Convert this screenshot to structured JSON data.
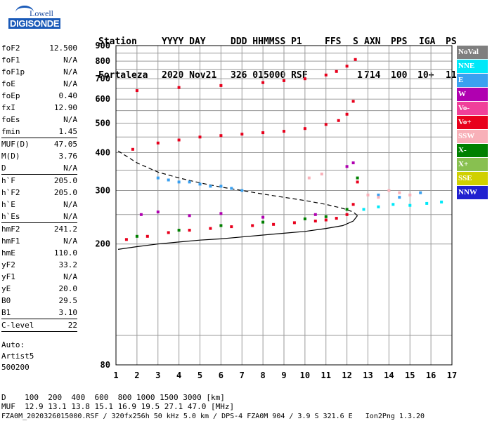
{
  "logo": {
    "line1": "Lowell",
    "line2": "DIGISONDE"
  },
  "header": {
    "labels": [
      "Station",
      "YYYY DAY",
      "DDD HHMMSS P1",
      "FFS",
      "S",
      "AXN",
      "PPS",
      "IGA",
      "PS"
    ],
    "values": [
      "Fortaleza",
      "2020 Nov21",
      "326 015000 RSF",
      "1",
      "714",
      "100",
      "10+",
      "11"
    ]
  },
  "params": {
    "groups": [
      [
        {
          "k": "foF2",
          "v": "12.500"
        },
        {
          "k": "foF1",
          "v": "N/A"
        },
        {
          "k": "foF1p",
          "v": "N/A"
        },
        {
          "k": "foE",
          "v": "N/A"
        },
        {
          "k": "foEp",
          "v": "0.40"
        },
        {
          "k": "fxI",
          "v": "12.90"
        },
        {
          "k": "foEs",
          "v": "N/A"
        },
        {
          "k": "fmin",
          "v": "1.45"
        }
      ],
      [
        {
          "k": "MUF(D)",
          "v": "47.05"
        },
        {
          "k": "M(D)",
          "v": "3.76"
        },
        {
          "k": "D",
          "v": "N/A"
        }
      ],
      [
        {
          "k": "h`F",
          "v": "205.0"
        },
        {
          "k": "h`F2",
          "v": "205.0"
        },
        {
          "k": "h`E",
          "v": "N/A"
        },
        {
          "k": "h`Es",
          "v": "N/A"
        }
      ],
      [
        {
          "k": "hmF2",
          "v": "241.2"
        },
        {
          "k": "hmF1",
          "v": "N/A"
        },
        {
          "k": "hmE",
          "v": "110.0"
        },
        {
          "k": "yF2",
          "v": "33.2"
        },
        {
          "k": "yF1",
          "v": "N/A"
        },
        {
          "k": "yE",
          "v": "20.0"
        },
        {
          "k": "B0",
          "v": "29.5"
        },
        {
          "k": "B1",
          "v": "3.10"
        }
      ],
      [
        {
          "k": "C-level",
          "v": "22"
        }
      ]
    ],
    "auto_label": "Auto:",
    "auto_name": "Artist5",
    "auto_code": "500200"
  },
  "legend": [
    {
      "label": "NoVal",
      "color": "#7f7f7f"
    },
    {
      "label": "NNE",
      "color": "#00e8f8"
    },
    {
      "label": "E",
      "color": "#3aa0f0"
    },
    {
      "label": "W",
      "color": "#b000b0"
    },
    {
      "label": "Vo-",
      "color": "#f0409a"
    },
    {
      "label": "Vo+",
      "color": "#e8001c"
    },
    {
      "label": "SSW",
      "color": "#f8b0b8"
    },
    {
      "label": "X-",
      "color": "#008000"
    },
    {
      "label": "X+",
      "color": "#88c050"
    },
    {
      "label": "SSE",
      "color": "#d0d000"
    },
    {
      "label": "NNW",
      "color": "#2020d0"
    }
  ],
  "footer": {
    "line1": "D    100  200  400  600  800 1000 1500 3000 [km]",
    "line2": "MUF  12.9 13.1 13.8 15.1 16.9 19.5 27.1 47.0 [MHz]",
    "line3": "FZA0M_2020326015000.RSF / 320fx256h 50 kHz 5.0 km / DPS-4 FZA0M 904 / 3.9 S 321.6 E   Ion2Png 1.3.20"
  },
  "chart_data": {
    "type": "scatter",
    "title": "",
    "xlabel": "",
    "ylabel": "",
    "xlim": [
      1,
      17
    ],
    "ylim": [
      80,
      900
    ],
    "y_scale": "log",
    "grid": true,
    "x_ticks": [
      1,
      2,
      3,
      4,
      5,
      6,
      7,
      8,
      9,
      10,
      11,
      12,
      13,
      14,
      15,
      16,
      17
    ],
    "y_ticks": [
      80,
      200,
      300,
      400,
      500,
      600,
      700,
      800,
      900
    ],
    "series": [
      {
        "name": "O-trace 1st hop",
        "color": "#e8001c",
        "x": [
          1.5,
          2.5,
          3.5,
          4.5,
          5.5,
          6.5,
          7.5,
          8.5,
          9.5,
          10.5,
          11.0,
          11.5,
          12.0,
          12.3,
          12.5
        ],
        "y": [
          207,
          212,
          218,
          222,
          225,
          228,
          230,
          232,
          235,
          238,
          240,
          243,
          250,
          270,
          320
        ]
      },
      {
        "name": "O-trace 2nd hop",
        "color": "#e8001c",
        "x": [
          1.8,
          3.0,
          4.0,
          5.0,
          6.0,
          7.0,
          8.0,
          9.0,
          10.0,
          11.0,
          11.6,
          12.0,
          12.3
        ],
        "y": [
          410,
          430,
          440,
          450,
          455,
          460,
          465,
          470,
          480,
          495,
          510,
          535,
          590
        ]
      },
      {
        "name": "O-trace 3rd hop",
        "color": "#e8001c",
        "x": [
          2.0,
          4.0,
          6.0,
          8.0,
          9.0,
          10.0,
          11.0,
          11.5,
          12.0,
          12.4
        ],
        "y": [
          640,
          655,
          665,
          680,
          690,
          700,
          720,
          740,
          770,
          810
        ]
      },
      {
        "name": "X-trace",
        "color": "#008000",
        "x": [
          2.0,
          4.0,
          6.0,
          8.0,
          10.0,
          11.0,
          12.0,
          12.5
        ],
        "y": [
          212,
          222,
          230,
          236,
          242,
          246,
          260,
          330
        ]
      },
      {
        "name": "NNE echoes",
        "color": "#00e8f8",
        "x": [
          12.8,
          13.5,
          14.2,
          15.0,
          15.8,
          16.5
        ],
        "y": [
          260,
          265,
          270,
          268,
          272,
          275
        ]
      },
      {
        "name": "E echoes",
        "color": "#3aa0f0",
        "x": [
          3.0,
          3.5,
          4.0,
          4.5,
          5.0,
          5.5,
          6.0,
          6.5,
          7.0,
          13.5,
          14.5,
          15.5
        ],
        "y": [
          330,
          325,
          320,
          320,
          315,
          310,
          310,
          305,
          300,
          290,
          285,
          295
        ]
      },
      {
        "name": "W echoes",
        "color": "#b000b0",
        "x": [
          2.2,
          3.0,
          4.5,
          6.0,
          8.0,
          10.5,
          12.0,
          12.3
        ],
        "y": [
          250,
          255,
          248,
          252,
          245,
          250,
          360,
          370
        ]
      },
      {
        "name": "SSW echoes",
        "color": "#f8b0b8",
        "x": [
          13.0,
          13.5,
          14.0,
          14.5,
          15.0,
          10.2,
          10.8
        ],
        "y": [
          290,
          285,
          300,
          295,
          290,
          330,
          340
        ]
      }
    ],
    "curves": [
      {
        "name": "profile solid",
        "style": "solid",
        "x": [
          1.1,
          2,
          3,
          4,
          5,
          6,
          7,
          8,
          9,
          10,
          11,
          11.8,
          12.3,
          12.5
        ],
        "y": [
          192,
          196,
          200,
          203,
          206,
          208,
          211,
          214,
          217,
          220,
          225,
          230,
          238,
          248
        ]
      },
      {
        "name": "profile dashed",
        "style": "dashed",
        "x": [
          1.1,
          2,
          3,
          4,
          5,
          6,
          7,
          8,
          9,
          10,
          11,
          11.8,
          12.3,
          12.5
        ],
        "y": [
          405,
          370,
          345,
          330,
          318,
          308,
          300,
          292,
          285,
          278,
          270,
          262,
          255,
          248
        ]
      }
    ]
  }
}
